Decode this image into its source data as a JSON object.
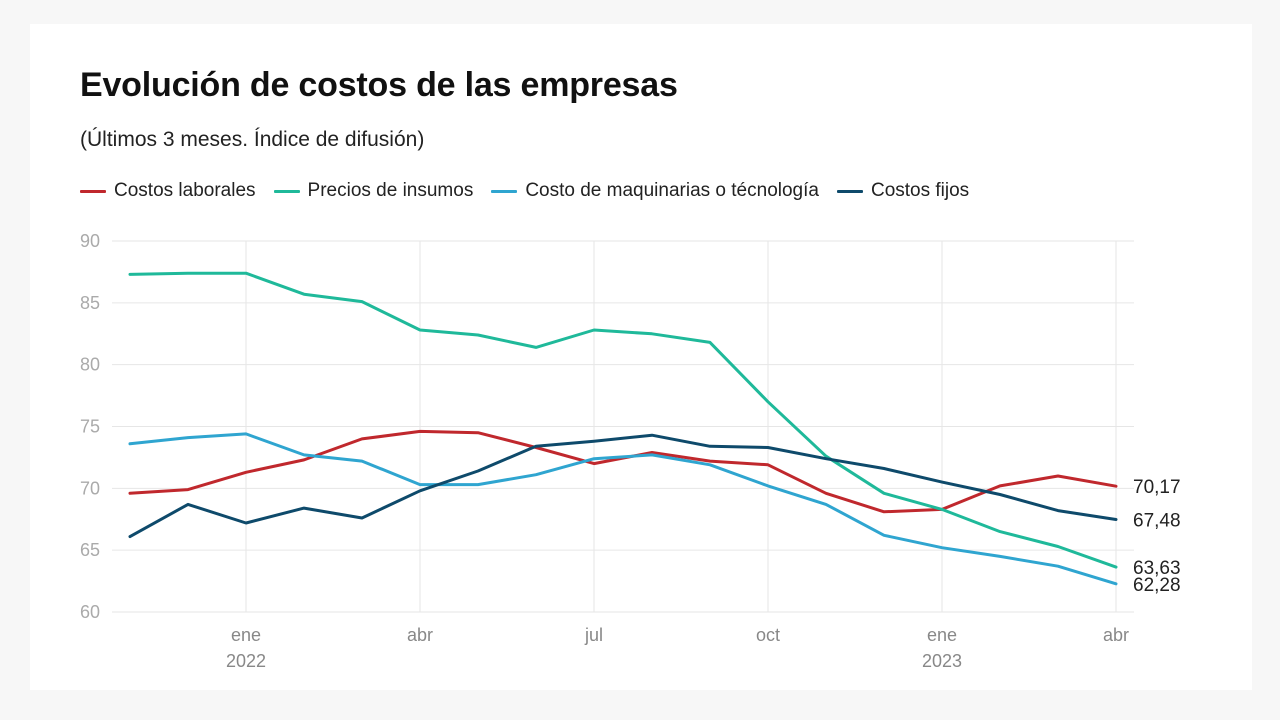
{
  "title": "Evolución de costos de las empresas",
  "subtitle": "(Últimos 3 meses. Índice de difusión)",
  "chart_data": {
    "type": "line",
    "title": "Evolución de costos de las empresas",
    "subtitle": "(Últimos 3 meses. Índice de difusión)",
    "xlabel": "",
    "ylabel": "",
    "ylim": [
      60,
      90
    ],
    "yticks": [
      "60",
      "65",
      "70",
      "75",
      "80",
      "85",
      "90"
    ],
    "grid": true,
    "legend_position": "top",
    "x": [
      "2021-11",
      "2021-12",
      "2022-01",
      "2022-02",
      "2022-03",
      "2022-04",
      "2022-05",
      "2022-06",
      "2022-07",
      "2022-08",
      "2022-09",
      "2022-10",
      "2022-11",
      "2022-12",
      "2023-01",
      "2023-02",
      "2023-03",
      "2023-04"
    ],
    "xticks": [
      {
        "label": "ene",
        "year": "2022",
        "at": "2022-01"
      },
      {
        "label": "abr",
        "year": "",
        "at": "2022-04"
      },
      {
        "label": "jul",
        "year": "",
        "at": "2022-07"
      },
      {
        "label": "oct",
        "year": "",
        "at": "2022-10"
      },
      {
        "label": "ene",
        "year": "2023",
        "at": "2023-01"
      },
      {
        "label": "abr",
        "year": "",
        "at": "2023-04"
      }
    ],
    "series": [
      {
        "name": "Costos laborales",
        "color": "#c0282d",
        "values": [
          69.6,
          69.9,
          71.3,
          72.3,
          74.0,
          74.6,
          74.5,
          73.3,
          72.0,
          72.9,
          72.2,
          71.9,
          69.6,
          68.1,
          68.3,
          70.2,
          71.0,
          70.17
        ],
        "end_label": "70,17"
      },
      {
        "name": "Precios de insumos",
        "color": "#1fb99a",
        "values": [
          87.3,
          87.4,
          87.4,
          85.7,
          85.1,
          82.8,
          82.4,
          81.4,
          82.8,
          82.5,
          81.8,
          77.0,
          72.6,
          69.6,
          68.3,
          66.5,
          65.3,
          63.63
        ],
        "end_label": "63,63"
      },
      {
        "name": "Costo de maquinarias o técnología",
        "color": "#2fa5d0",
        "values": [
          73.6,
          74.1,
          74.4,
          72.7,
          72.2,
          70.3,
          70.3,
          71.1,
          72.4,
          72.7,
          71.9,
          70.2,
          68.7,
          66.2,
          65.2,
          64.5,
          63.7,
          62.28
        ],
        "end_label": "62,28"
      },
      {
        "name": "Costos fijos",
        "color": "#0e4a6b",
        "values": [
          66.1,
          68.7,
          67.2,
          68.4,
          67.6,
          69.8,
          71.4,
          73.4,
          73.8,
          74.3,
          73.4,
          73.3,
          72.4,
          71.6,
          70.5,
          69.5,
          68.2,
          67.48
        ],
        "end_label": "67,48"
      }
    ]
  }
}
